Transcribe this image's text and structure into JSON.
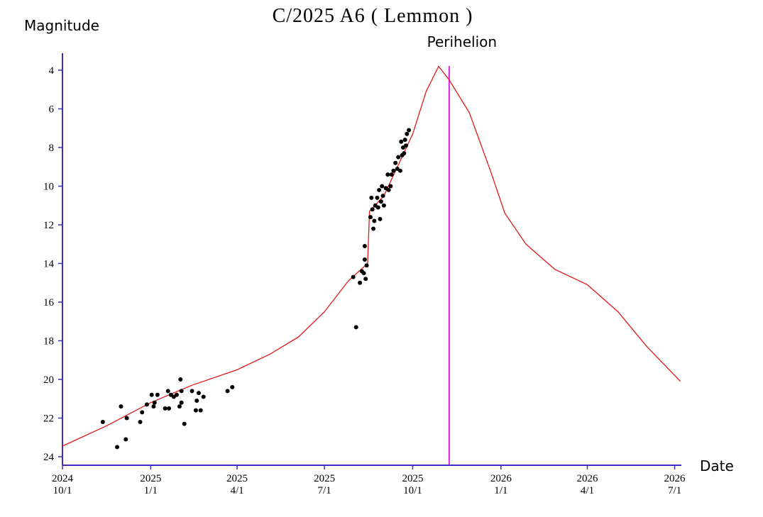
{
  "chart_data": {
    "type": "line",
    "title": "C/2025 A6 ( Lemmon )",
    "y_label": "Magnitude",
    "x_label": "Date",
    "axis_color": "#3c2fbd",
    "ylim": [
      24.44,
      3.12
    ],
    "yticks": [
      4,
      6,
      8,
      10,
      12,
      14,
      16,
      18,
      20,
      22,
      24
    ],
    "xlim": [
      "2024-10-01",
      "2026-07-08"
    ],
    "xticks": [
      {
        "value": "2024-10-01",
        "label": [
          "2024",
          "10/1"
        ]
      },
      {
        "value": "2025-01-01",
        "label": [
          "2025",
          "1/1"
        ]
      },
      {
        "value": "2025-04-01",
        "label": [
          "2025",
          "4/1"
        ]
      },
      {
        "value": "2025-07-01",
        "label": [
          "2025",
          "7/1"
        ]
      },
      {
        "value": "2025-10-01",
        "label": [
          "2025",
          "10/1"
        ]
      },
      {
        "value": "2026-01-01",
        "label": [
          "2026",
          "1/1"
        ]
      },
      {
        "value": "2026-04-01",
        "label": [
          "2026",
          "4/1"
        ]
      },
      {
        "value": "2026-07-01",
        "label": [
          "2026",
          "7/1"
        ]
      }
    ],
    "perihelion": {
      "label": "Perihelion",
      "x": "2025-11-08",
      "color": "#e020e0"
    },
    "series": [
      {
        "type": "line",
        "color": "#e01818",
        "x": [
          "2024-10-01",
          "2024-11-16",
          "2025-01-01",
          "2025-02-13",
          "2025-04-01",
          "2025-05-05",
          "2025-06-04",
          "2025-07-01",
          "2025-07-26",
          "2025-08-15",
          "2025-08-17",
          "2025-09-01",
          "2025-10-01",
          "2025-10-15",
          "2025-10-28",
          "2025-11-08",
          "2025-11-29",
          "2025-12-21",
          "2026-01-05",
          "2026-01-27",
          "2026-02-26",
          "2026-04-01",
          "2026-05-03",
          "2026-06-02",
          "2026-07-07"
        ],
        "values": [
          23.45,
          22.4,
          21.2,
          20.3,
          19.5,
          18.7,
          17.8,
          16.5,
          14.9,
          14.0,
          11.3,
          10.5,
          7.3,
          5.1,
          3.8,
          4.5,
          6.2,
          9.2,
          11.4,
          13.0,
          14.3,
          15.1,
          16.5,
          18.3,
          20.1
        ]
      },
      {
        "type": "scatter",
        "color": "#000000",
        "x": [
          "2024-11-12",
          "2024-11-27",
          "2024-12-01",
          "2024-12-06",
          "2024-12-07",
          "2024-12-21",
          "2024-12-23",
          "2024-12-28",
          "2025-01-02",
          "2025-01-04",
          "2025-01-05",
          "2025-01-08",
          "2025-01-16",
          "2025-01-19",
          "2025-01-20",
          "2025-01-22",
          "2025-01-25",
          "2025-01-28",
          "2025-01-31",
          "2025-02-01",
          "2025-02-02",
          "2025-02-02",
          "2025-02-05",
          "2025-02-13",
          "2025-02-17",
          "2025-02-18",
          "2025-02-20",
          "2025-02-22",
          "2025-02-25",
          "2025-03-22",
          "2025-03-27",
          "2025-07-31",
          "2025-08-03",
          "2025-08-07",
          "2025-08-09",
          "2025-08-11",
          "2025-08-12",
          "2025-08-12",
          "2025-08-13",
          "2025-08-14",
          "2025-08-18",
          "2025-08-19",
          "2025-08-20",
          "2025-08-21",
          "2025-08-22",
          "2025-08-23",
          "2025-08-25",
          "2025-08-26",
          "2025-08-27",
          "2025-08-28",
          "2025-08-29",
          "2025-08-30",
          "2025-08-31",
          "2025-09-01",
          "2025-09-03",
          "2025-09-05",
          "2025-09-06",
          "2025-09-08",
          "2025-09-09",
          "2025-09-11",
          "2025-09-13",
          "2025-09-15",
          "2025-09-16",
          "2025-09-18",
          "2025-09-19",
          "2025-09-20",
          "2025-09-21",
          "2025-09-22",
          "2025-09-23",
          "2025-09-24",
          "2025-09-25",
          "2025-09-27"
        ],
        "values": [
          22.2,
          23.5,
          21.4,
          23.1,
          22.0,
          22.2,
          21.7,
          21.3,
          20.8,
          21.4,
          21.2,
          20.8,
          21.5,
          20.6,
          21.5,
          20.8,
          20.9,
          20.8,
          21.4,
          20.0,
          21.2,
          20.6,
          22.3,
          20.6,
          21.6,
          21.1,
          20.7,
          21.6,
          20.9,
          20.6,
          20.4,
          14.7,
          17.3,
          15.0,
          14.4,
          14.5,
          13.1,
          13.8,
          14.8,
          14.1,
          11.6,
          10.6,
          11.2,
          12.2,
          11.8,
          11.0,
          10.6,
          11.1,
          10.2,
          11.7,
          10.8,
          10.0,
          10.5,
          11.0,
          10.1,
          9.4,
          10.2,
          10.0,
          9.4,
          9.2,
          8.8,
          9.1,
          8.5,
          9.2,
          7.7,
          8.4,
          8.0,
          8.3,
          7.6,
          7.9,
          7.3,
          7.1
        ]
      }
    ]
  }
}
